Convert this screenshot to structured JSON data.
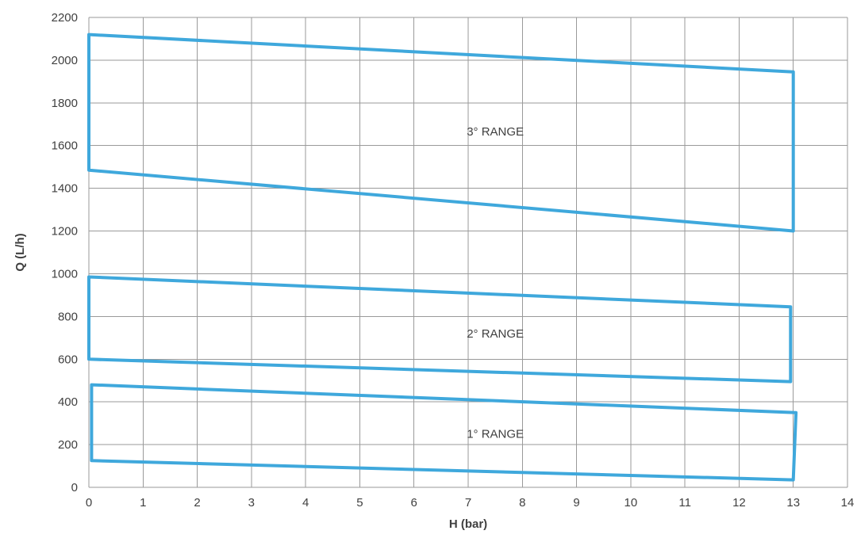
{
  "chart_data": {
    "type": "area",
    "title": "",
    "xlabel": "H (bar)",
    "ylabel": "Q (L/h)",
    "xlim": [
      0,
      14
    ],
    "ylim": [
      0,
      2200
    ],
    "x_ticks": [
      0,
      1,
      2,
      3,
      4,
      5,
      6,
      7,
      8,
      9,
      10,
      11,
      12,
      13,
      14
    ],
    "y_ticks": [
      0,
      200,
      400,
      600,
      800,
      1000,
      1200,
      1400,
      1600,
      1800,
      2000,
      2200
    ],
    "grid": true,
    "line_color": "#3fa8dc",
    "series": [
      {
        "name": "1° RANGE",
        "polygon": [
          [
            0.05,
            480
          ],
          [
            13.05,
            350
          ],
          [
            13.0,
            35
          ],
          [
            0.05,
            125
          ]
        ],
        "label_position": [
          7.5,
          250
        ]
      },
      {
        "name": "2° RANGE",
        "polygon": [
          [
            0.0,
            985
          ],
          [
            12.95,
            845
          ],
          [
            12.95,
            495
          ],
          [
            0.0,
            600
          ]
        ],
        "label_position": [
          7.5,
          720
        ]
      },
      {
        "name": "3° RANGE",
        "polygon": [
          [
            0.0,
            2120
          ],
          [
            13.0,
            1945
          ],
          [
            13.0,
            1200
          ],
          [
            0.0,
            1485
          ]
        ],
        "label_position": [
          7.5,
          1665
        ]
      }
    ]
  }
}
